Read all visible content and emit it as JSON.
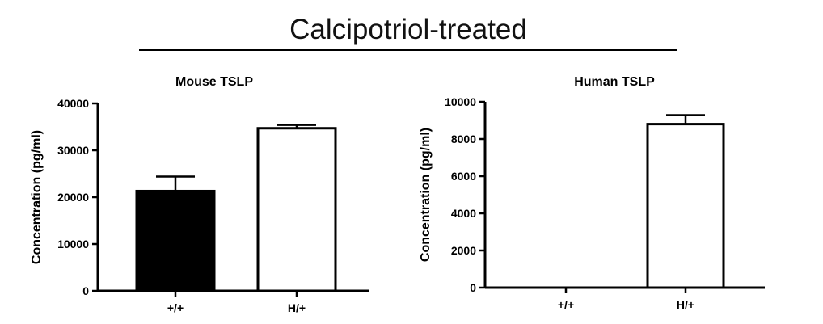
{
  "figure_title": "Calcipotriol-treated",
  "chart_data": [
    {
      "type": "bar",
      "title": "Mouse TSLP",
      "xlabel": "",
      "ylabel": "Concentration (pg/ml)",
      "categories": [
        "+/+",
        "H/+"
      ],
      "values": [
        21300,
        34700
      ],
      "errors": [
        3100,
        700
      ],
      "bar_fills": [
        "#000000",
        "#ffffff"
      ],
      "ylim": [
        0,
        40000
      ],
      "yticks": [
        0,
        10000,
        20000,
        30000,
        40000
      ],
      "ytick_labels": [
        "0",
        "10000",
        "20000",
        "30000",
        "40000"
      ],
      "grid": false
    },
    {
      "type": "bar",
      "title": "Human TSLP",
      "xlabel": "",
      "ylabel": "Concentration (pg/ml)",
      "categories": [
        "+/+",
        "H/+"
      ],
      "values": [
        0,
        8800
      ],
      "errors": [
        0,
        480
      ],
      "bar_fills": [
        "#000000",
        "#ffffff"
      ],
      "ylim": [
        0,
        10000
      ],
      "yticks": [
        0,
        2000,
        4000,
        6000,
        8000,
        10000
      ],
      "ytick_labels": [
        "0",
        "2000",
        "4000",
        "6000",
        "8000",
        "10000"
      ],
      "grid": false
    }
  ]
}
